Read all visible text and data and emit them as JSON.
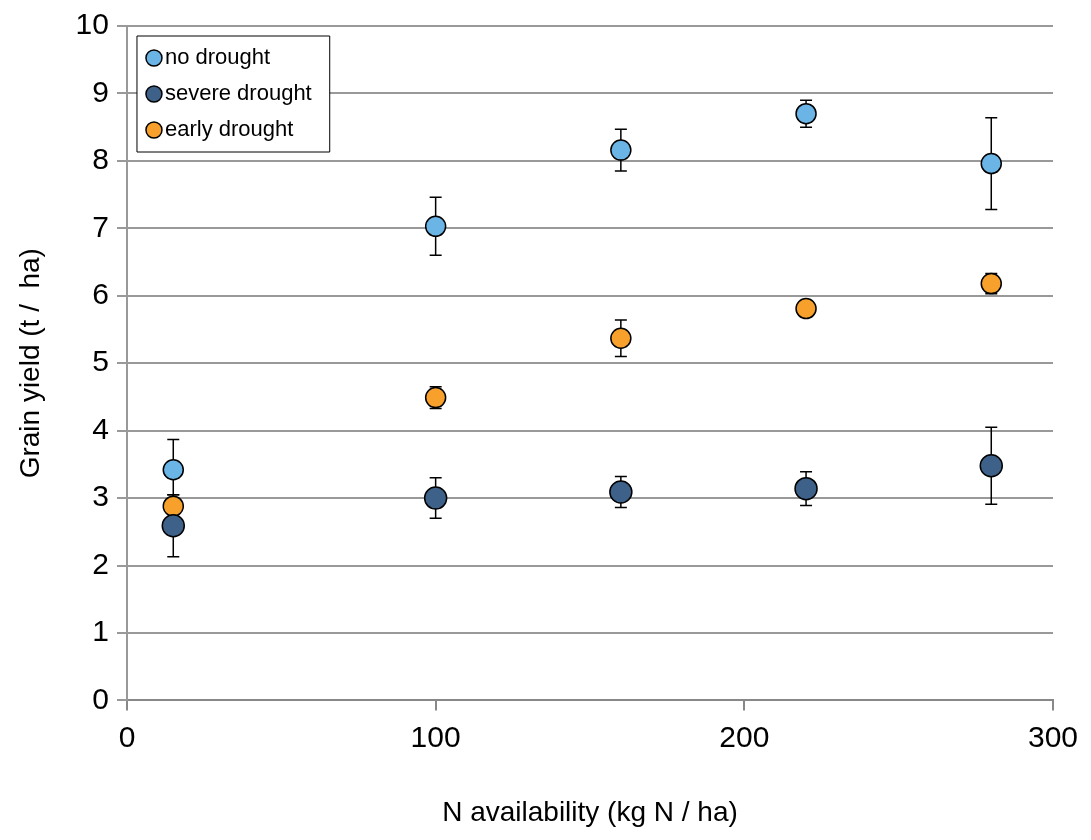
{
  "chart_data": {
    "type": "scatter",
    "xlabel": "N availability (kg N / ha)",
    "ylabel": "Grain yield (t /  ha)",
    "xlim": [
      0,
      300
    ],
    "xticks": [
      0,
      100,
      200,
      300
    ],
    "ylim": [
      0,
      10
    ],
    "yticks": [
      0,
      1,
      2,
      3,
      4,
      5,
      6,
      7,
      8,
      9,
      10
    ],
    "grid": "y",
    "legend": "top left",
    "marker": "circle",
    "series": [
      {
        "name": "no drought",
        "color": "#6ab4e6",
        "x": [
          15,
          100,
          160,
          220,
          280
        ],
        "values": [
          3.42,
          7.03,
          8.16,
          8.7,
          7.96
        ],
        "errors": [
          0.45,
          0.43,
          0.31,
          0.2,
          0.68
        ]
      },
      {
        "name": "severe drought",
        "color": "#3e6189",
        "x": [
          15,
          100,
          160,
          220,
          280
        ],
        "values": [
          2.59,
          3.0,
          3.09,
          3.14,
          3.48
        ],
        "errors": [
          0.46,
          0.3,
          0.23,
          0.25,
          0.57
        ]
      },
      {
        "name": "early drought",
        "color": "#f7a02c",
        "x": [
          15,
          100,
          160,
          220,
          280
        ],
        "values": [
          2.88,
          4.49,
          5.37,
          5.81,
          6.18
        ],
        "errors": [
          0.17,
          0.16,
          0.27,
          null,
          0.15
        ]
      }
    ]
  }
}
